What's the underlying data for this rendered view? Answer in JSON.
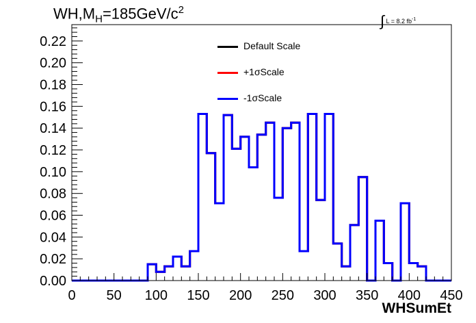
{
  "header": {
    "title": "WH,M",
    "title_sub": "H",
    "title_rest": "=185GeV/c",
    "title_sup": "2",
    "lumi_int": "∫",
    "lumi_text": "L = 8.2 fb",
    "lumi_sup": "-1"
  },
  "legend": {
    "items": [
      {
        "label": "Default Scale",
        "color": "#000000"
      },
      {
        "label": "+1σScale",
        "color": "#ff0000"
      },
      {
        "label": "-1σScale",
        "color": "#0000ff"
      }
    ]
  },
  "chart_data": {
    "type": "line",
    "title": "WH,M_H=185GeV/c^2",
    "xlabel": "WHSumEt",
    "ylabel": "",
    "xlim": [
      0,
      450
    ],
    "ylim": [
      0,
      0.235
    ],
    "x_ticks": [
      "0",
      "50",
      "100",
      "150",
      "200",
      "250",
      "300",
      "350",
      "400",
      "450"
    ],
    "y_ticks": [
      "0.00",
      "0.02",
      "0.04",
      "0.06",
      "0.08",
      "0.10",
      "0.12",
      "0.14",
      "0.16",
      "0.18",
      "0.20",
      "0.22"
    ],
    "bin_edges": [
      0,
      10,
      20,
      30,
      40,
      50,
      60,
      70,
      80,
      90,
      100,
      110,
      120,
      130,
      140,
      150,
      160,
      170,
      180,
      190,
      200,
      210,
      220,
      230,
      240,
      250,
      260,
      270,
      280,
      290,
      300,
      310,
      320,
      330,
      340,
      350,
      360,
      370,
      380,
      390,
      400,
      410,
      420,
      430,
      440,
      450
    ],
    "series": [
      {
        "name": "Default Scale",
        "color": "#000000",
        "values": [
          0,
          0,
          0,
          0,
          0,
          0,
          0,
          0,
          0,
          0.015,
          0.008,
          0.013,
          0.022,
          0.013,
          0.027,
          0.153,
          0.117,
          0.071,
          0.152,
          0.121,
          0.132,
          0.104,
          0.134,
          0.145,
          0.076,
          0.14,
          0.145,
          0.027,
          0.153,
          0.074,
          0.153,
          0.034,
          0.013,
          0.051,
          0.095,
          0,
          0.055,
          0.016,
          0,
          0.071,
          0.016,
          0.013,
          0,
          0,
          0
        ]
      },
      {
        "name": "+1σScale",
        "color": "#ff0000",
        "values": [
          0,
          0,
          0,
          0,
          0,
          0,
          0,
          0,
          0,
          0.015,
          0.008,
          0.013,
          0.022,
          0.013,
          0.027,
          0.153,
          0.117,
          0.071,
          0.152,
          0.121,
          0.132,
          0.104,
          0.134,
          0.145,
          0.076,
          0.14,
          0.145,
          0.027,
          0.153,
          0.074,
          0.153,
          0.034,
          0.013,
          0.051,
          0.095,
          0,
          0.055,
          0.016,
          0,
          0.071,
          0.016,
          0.013,
          0,
          0,
          0
        ]
      },
      {
        "name": "-1σScale",
        "color": "#0000ff",
        "values": [
          0,
          0,
          0,
          0,
          0,
          0,
          0,
          0,
          0,
          0.015,
          0.008,
          0.013,
          0.022,
          0.013,
          0.027,
          0.153,
          0.117,
          0.071,
          0.152,
          0.121,
          0.132,
          0.104,
          0.134,
          0.145,
          0.076,
          0.14,
          0.145,
          0.027,
          0.153,
          0.074,
          0.153,
          0.034,
          0.013,
          0.051,
          0.095,
          0,
          0.055,
          0.016,
          0,
          0.071,
          0.016,
          0.013,
          0,
          0,
          0
        ]
      }
    ],
    "legend_position": "top-center",
    "grid": false
  }
}
